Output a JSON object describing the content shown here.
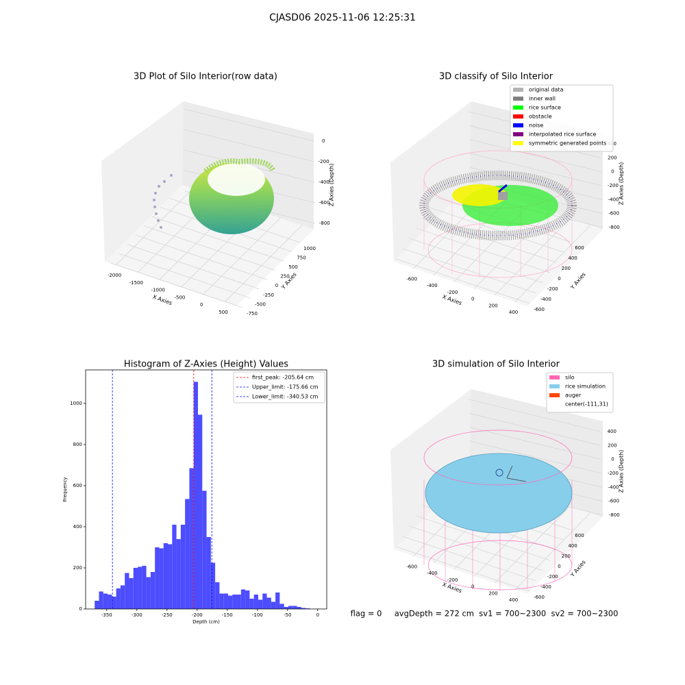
{
  "title": "CJASD06 2025-11-06 12:25:31",
  "footer": "flag = 0     avgDepth = 272 cm  sv1 = 700~2300  sv2 = 700~2300",
  "chart_data": [
    {
      "type": "scatter3d",
      "title": "3D Plot of Silo Interior(row data)",
      "xlabel": "X Axies",
      "ylabel": "Y Axies",
      "zlabel": "Z Axies (Depth)",
      "xlim": [
        -2250,
        770
      ],
      "xticks": [
        -2000,
        -1500,
        -1000,
        -500,
        0,
        500
      ],
      "ylim": [
        -900,
        1200
      ],
      "yticks": [
        -750,
        -500,
        -250,
        0,
        250,
        500,
        750,
        1000
      ],
      "zlim": [
        -900,
        100
      ],
      "zticks": [
        -800,
        -600,
        -400,
        -200,
        0
      ],
      "grid": true
    },
    {
      "type": "scatter3d",
      "title": "3D classify of Silo Interior",
      "xlabel": "X Axies",
      "ylabel": "Y Axies",
      "zlabel": "Z Axies (Depth)",
      "xlim": [
        -700,
        500
      ],
      "xticks": [
        -600,
        -400,
        -200,
        0,
        200,
        400
      ],
      "ylim": [
        -700,
        700
      ],
      "yticks": [
        -600,
        -400,
        -200,
        0,
        200,
        400,
        600
      ],
      "zlim": [
        -900,
        500
      ],
      "zticks": [
        -800,
        -600,
        -400,
        -200,
        0,
        200,
        400
      ],
      "grid": true,
      "legend_loc": "upper right",
      "legend": [
        {
          "name": "original data",
          "color": "#b3b3b3"
        },
        {
          "name": "inner wall",
          "color": "#808080"
        },
        {
          "name": "rice surface",
          "color": "#00ff00"
        },
        {
          "name": "obstacle",
          "color": "#ff0000"
        },
        {
          "name": "noise",
          "color": "#0000ff"
        },
        {
          "name": "interpolated rice surface",
          "color": "#800080"
        },
        {
          "name": "symmetric generated points",
          "color": "#ffff00"
        }
      ]
    },
    {
      "type": "histogram",
      "title": "Histogram of Z-Axies (Height) Values",
      "xlabel": "Depth (cm)",
      "ylabel": "Frequency",
      "color": "#4d4dff",
      "bins": [
        -370,
        -362.86,
        -355.72,
        -348.58,
        -341.44,
        -334.3,
        -327.16,
        -320.02,
        -312.88,
        -305.74,
        -298.6,
        -291.46,
        -284.32,
        -277.18,
        -270.04,
        -262.9,
        -255.76,
        -248.62,
        -241.48,
        -234.34,
        -227.2,
        -220.06,
        -212.92,
        -205.78,
        -198.64,
        -191.5,
        -184.36,
        -177.22,
        -170.08,
        -162.94,
        -155.8,
        -148.66,
        -141.52,
        -134.38,
        -127.24,
        -120.1,
        -112.96,
        -105.82,
        -98.68,
        -91.54,
        -84.4,
        -77.26,
        -70.12,
        -62.98,
        -55.84,
        -48.7,
        -41.56,
        -34.42,
        -27.28,
        -20.14,
        -13
      ],
      "values": [
        40,
        85,
        75,
        70,
        60,
        100,
        115,
        175,
        150,
        200,
        205,
        210,
        155,
        180,
        300,
        295,
        320,
        315,
        410,
        340,
        410,
        535,
        685,
        1105,
        945,
        575,
        350,
        225,
        130,
        75,
        75,
        65,
        70,
        70,
        95,
        90,
        50,
        70,
        45,
        75,
        55,
        35,
        80,
        25,
        10,
        15,
        15,
        10,
        5,
        3
      ],
      "xlim": [
        -385,
        15
      ],
      "xticks": [
        -350,
        -300,
        -250,
        -200,
        -150,
        -100,
        -50,
        0
      ],
      "ylim": [
        0,
        1163
      ],
      "yticks": [
        0,
        200,
        400,
        600,
        800,
        1000
      ],
      "legend_loc": "upper right",
      "vlines": [
        {
          "name": "first_peak: -205.64 cm",
          "value": -205.64,
          "color": "#ff0000"
        },
        {
          "name": "Upper_limit: -175.66 cm",
          "value": -175.66,
          "color": "#0000ff"
        },
        {
          "name": "Lower_limit: -340.53 cm",
          "value": -340.53,
          "color": "#0000ff"
        }
      ]
    },
    {
      "type": "surface3d",
      "title": "3D simulation of Silo Interior",
      "xlabel": "X Axies",
      "ylabel": "Y Axies",
      "zlabel": "Z Axies (Depth)",
      "xlim": [
        -700,
        500
      ],
      "xticks": [
        -600,
        -400,
        -200,
        0,
        200,
        400
      ],
      "ylim": [
        -700,
        700
      ],
      "yticks": [
        -600,
        -400,
        -200,
        0,
        200,
        400,
        600
      ],
      "zlim": [
        -900,
        500
      ],
      "zticks": [
        -800,
        -600,
        -400,
        -200,
        0,
        200,
        400
      ],
      "grid": true,
      "legend_loc": "upper right",
      "legend": [
        {
          "name": "silo",
          "color": "#ff69b4"
        },
        {
          "name": "rice simulation",
          "color": "#87ceeb"
        },
        {
          "name": "auger",
          "color": "#ff4500"
        },
        {
          "name": "center(-111,31)",
          "color": "#ffffff"
        }
      ]
    }
  ]
}
